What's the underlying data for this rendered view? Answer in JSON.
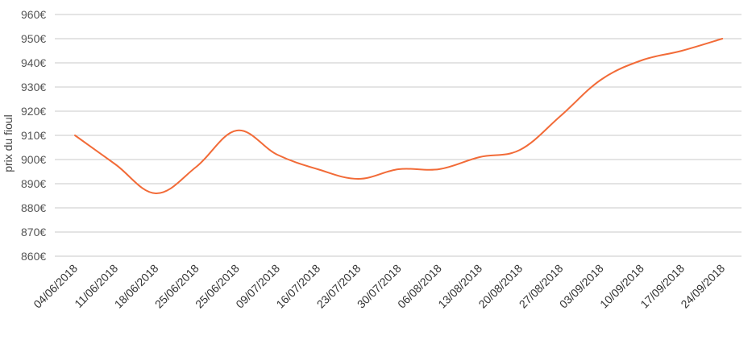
{
  "chart_data": {
    "type": "line",
    "title": "",
    "xlabel": "",
    "ylabel": "prix du fioul",
    "y_unit_suffix": "€",
    "ylim": [
      855,
      960
    ],
    "y_ticks": [
      860,
      870,
      880,
      890,
      900,
      910,
      920,
      930,
      940,
      950,
      960
    ],
    "grid": true,
    "legend": "none",
    "categories": [
      "04/06/2018",
      "11/06/2018",
      "18/06/2018",
      "25/06/2018",
      "25/06/2018",
      "09/07/2018",
      "16/07/2018",
      "23/07/2018",
      "30/07/2018",
      "06/08/2018",
      "13/08/2018",
      "20/08/2018",
      "27/08/2018",
      "03/09/2018",
      "10/09/2018",
      "17/09/2018",
      "24/09/2018"
    ],
    "series": [
      {
        "color": "#f26b38",
        "values": [
          910,
          898,
          886,
          897,
          912,
          902,
          896,
          892,
          896,
          896,
          901,
          904,
          918,
          933,
          941,
          945,
          950
        ]
      }
    ]
  }
}
